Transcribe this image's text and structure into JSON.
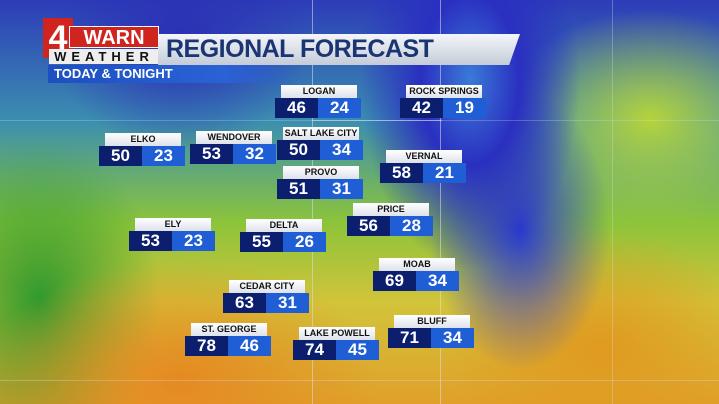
{
  "header": {
    "logo": {
      "number": "4",
      "word": "WARN",
      "sub": "WEATHER"
    },
    "title": "REGIONAL FORECAST",
    "subtitle": "TODAY & TONIGHT"
  },
  "colors": {
    "high_box": "#0b1f6e",
    "low_box": "#1f5ed4",
    "logo_red": "#d0241f",
    "title_text": "#1b3473"
  },
  "cities": [
    {
      "name": "LOGAN",
      "high": "46",
      "low": "24"
    },
    {
      "name": "ROCK SPRINGS",
      "high": "42",
      "low": "19"
    },
    {
      "name": "ELKO",
      "high": "50",
      "low": "23"
    },
    {
      "name": "WENDOVER",
      "high": "53",
      "low": "32"
    },
    {
      "name": "SALT LAKE CITY",
      "high": "50",
      "low": "34"
    },
    {
      "name": "VERNAL",
      "high": "58",
      "low": "21"
    },
    {
      "name": "PROVO",
      "high": "51",
      "low": "31"
    },
    {
      "name": "PRICE",
      "high": "56",
      "low": "28"
    },
    {
      "name": "ELY",
      "high": "53",
      "low": "23"
    },
    {
      "name": "DELTA",
      "high": "55",
      "low": "26"
    },
    {
      "name": "MOAB",
      "high": "69",
      "low": "34"
    },
    {
      "name": "CEDAR CITY",
      "high": "63",
      "low": "31"
    },
    {
      "name": "ST. GEORGE",
      "high": "78",
      "low": "46"
    },
    {
      "name": "LAKE POWELL",
      "high": "74",
      "low": "45"
    },
    {
      "name": "BLUFF",
      "high": "71",
      "low": "34"
    }
  ]
}
